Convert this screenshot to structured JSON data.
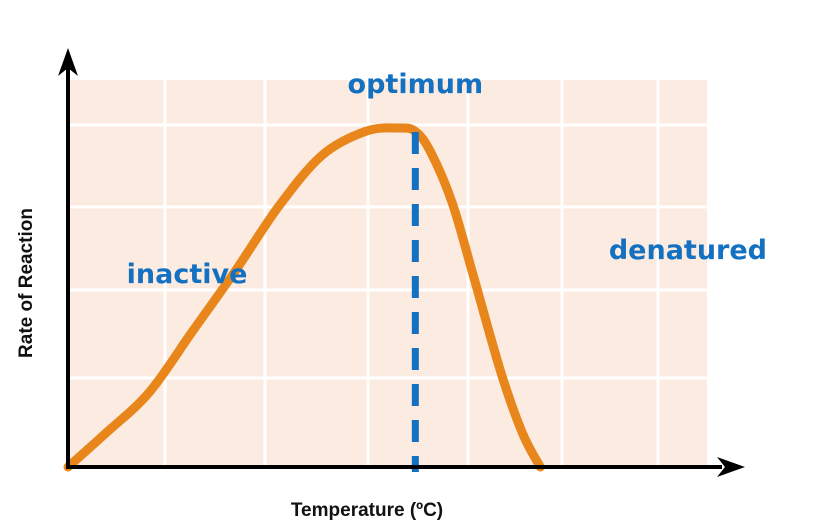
{
  "chart_data": {
    "type": "line",
    "xlabel": "Temperature (ºC)",
    "ylabel": "Rate of Reaction",
    "xlim": [
      0,
      100
    ],
    "ylim": [
      0,
      100
    ],
    "grid": true,
    "x_tick_labels": [],
    "y_tick_labels": [],
    "series": [
      {
        "x": [
          0,
          7,
          15,
          23,
          31,
          39,
          47,
          55,
          61,
          64.2,
          67,
          71,
          75,
          80,
          84,
          87.3
        ],
        "y": [
          0,
          10,
          22,
          40,
          58,
          77,
          92,
          99,
          100,
          99,
          93,
          78,
          56,
          28,
          10,
          0
        ]
      }
    ],
    "optimum_x": 64.2,
    "annotations": [
      {
        "text": "optimum",
        "x": 64.2,
        "y": 113
      },
      {
        "text": "inactive",
        "x": 22,
        "y": 57
      },
      {
        "text": "denatured",
        "x": 100,
        "y": 64
      }
    ],
    "colors": {
      "plot_background": "#fcebe0",
      "grid": "#ffffff",
      "curve": "#e8861b",
      "optimum_line": "#1470c0",
      "labels": "#1470c0",
      "axes": "#000000"
    }
  }
}
